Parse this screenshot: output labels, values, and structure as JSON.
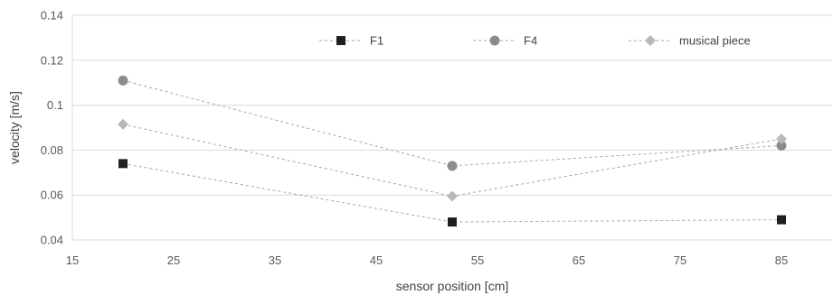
{
  "chart_data": {
    "type": "line",
    "xlabel": "sensor position [cm]",
    "ylabel": "velocity [m/s]",
    "xlim": [
      15,
      90
    ],
    "ylim": [
      0.04,
      0.14
    ],
    "xticks": [
      15,
      25,
      35,
      45,
      55,
      65,
      75,
      85
    ],
    "xtick_labels": [
      "15",
      "25",
      "35",
      "45",
      "55",
      "65",
      "75",
      "85"
    ],
    "yticks": [
      0.04,
      0.06,
      0.08,
      0.1,
      0.12,
      0.14
    ],
    "ytick_labels": [
      "0.04",
      "0.06",
      "0.08",
      "0.1",
      "0.12",
      "0.14"
    ],
    "grid": "horizontal",
    "legend_position": "top",
    "x": [
      20,
      52.5,
      85
    ],
    "series": [
      {
        "name": "F1",
        "marker": "square",
        "color": "#1f1f1f",
        "values": [
          0.074,
          0.048,
          0.049
        ]
      },
      {
        "name": "F4",
        "marker": "circle",
        "color": "#8c8c8c",
        "values": [
          0.111,
          0.073,
          0.082
        ]
      },
      {
        "name": "musical piece",
        "marker": "diamond",
        "color": "#b8b8b8",
        "values": [
          0.0915,
          0.0595,
          0.085
        ]
      }
    ],
    "line_color": "#a6a6a6",
    "grid_color": "#d9d9d9"
  }
}
